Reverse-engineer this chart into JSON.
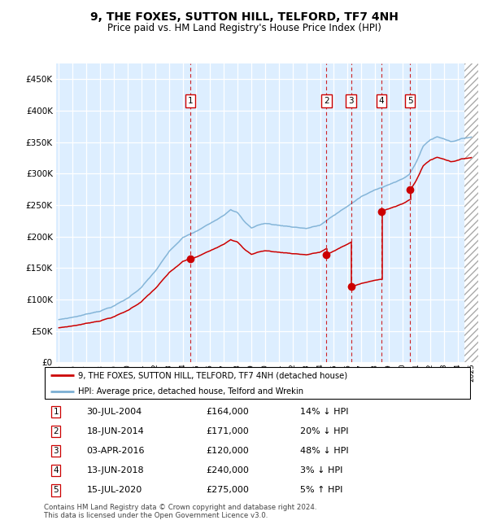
{
  "title": "9, THE FOXES, SUTTON HILL, TELFORD, TF7 4NH",
  "subtitle": "Price paid vs. HM Land Registry's House Price Index (HPI)",
  "legend_line1": "9, THE FOXES, SUTTON HILL, TELFORD, TF7 4NH (detached house)",
  "legend_line2": "HPI: Average price, detached house, Telford and Wrekin",
  "footer1": "Contains HM Land Registry data © Crown copyright and database right 2024.",
  "footer2": "This data is licensed under the Open Government Licence v3.0.",
  "transactions": [
    {
      "num": 1,
      "date": "30-JUL-2004",
      "price": 164000,
      "pct": "14%",
      "dir": "↓",
      "year_x": 2004.57
    },
    {
      "num": 2,
      "date": "18-JUN-2014",
      "price": 171000,
      "pct": "20%",
      "dir": "↓",
      "year_x": 2014.46
    },
    {
      "num": 3,
      "date": "03-APR-2016",
      "price": 120000,
      "pct": "48%",
      "dir": "↓",
      "year_x": 2016.25
    },
    {
      "num": 4,
      "date": "13-JUN-2018",
      "price": 240000,
      "pct": "3%",
      "dir": "↓",
      "year_x": 2018.45
    },
    {
      "num": 5,
      "date": "15-JUL-2020",
      "price": 275000,
      "pct": "5%",
      "dir": "↑",
      "year_x": 2020.54
    }
  ],
  "hpi_color": "#7bafd4",
  "price_color": "#cc0000",
  "bg_color": "#ddeeff",
  "ylim": [
    0,
    475000
  ],
  "xlim_lo": 1994.8,
  "xlim_hi": 2025.5,
  "yticks": [
    0,
    50000,
    100000,
    150000,
    200000,
    250000,
    300000,
    350000,
    400000,
    450000
  ],
  "xticks": [
    1995,
    1996,
    1997,
    1998,
    1999,
    2000,
    2001,
    2002,
    2003,
    2004,
    2005,
    2006,
    2007,
    2008,
    2009,
    2010,
    2011,
    2012,
    2013,
    2014,
    2015,
    2016,
    2017,
    2018,
    2019,
    2020,
    2021,
    2022,
    2023,
    2024,
    2025
  ],
  "hpi_data_x": [
    1995.0,
    1995.08,
    1995.17,
    1995.25,
    1995.33,
    1995.42,
    1995.5,
    1995.58,
    1995.67,
    1995.75,
    1995.83,
    1995.92,
    1996.0,
    1996.08,
    1996.17,
    1996.25,
    1996.33,
    1996.42,
    1996.5,
    1996.58,
    1996.67,
    1996.75,
    1996.83,
    1996.92,
    1997.0,
    1997.08,
    1997.17,
    1997.25,
    1997.33,
    1997.42,
    1997.5,
    1997.58,
    1997.67,
    1997.75,
    1997.83,
    1997.92,
    1998.0,
    1998.08,
    1998.17,
    1998.25,
    1998.33,
    1998.42,
    1998.5,
    1998.58,
    1998.67,
    1998.75,
    1998.83,
    1998.92,
    1999.0,
    1999.08,
    1999.17,
    1999.25,
    1999.33,
    1999.42,
    1999.5,
    1999.58,
    1999.67,
    1999.75,
    1999.83,
    1999.92,
    2000.0,
    2000.08,
    2000.17,
    2000.25,
    2000.33,
    2000.42,
    2000.5,
    2000.58,
    2000.67,
    2000.75,
    2000.83,
    2000.92,
    2001.0,
    2001.08,
    2001.17,
    2001.25,
    2001.33,
    2001.42,
    2001.5,
    2001.58,
    2001.67,
    2001.75,
    2001.83,
    2001.92,
    2002.0,
    2002.08,
    2002.17,
    2002.25,
    2002.33,
    2002.42,
    2002.5,
    2002.58,
    2002.67,
    2002.75,
    2002.83,
    2002.92,
    2003.0,
    2003.08,
    2003.17,
    2003.25,
    2003.33,
    2003.42,
    2003.5,
    2003.58,
    2003.67,
    2003.75,
    2003.83,
    2003.92,
    2004.0,
    2004.08,
    2004.17,
    2004.25,
    2004.33,
    2004.42,
    2004.5,
    2004.58,
    2004.67,
    2004.75,
    2004.83,
    2004.92,
    2005.0,
    2005.08,
    2005.17,
    2005.25,
    2005.33,
    2005.42,
    2005.5,
    2005.58,
    2005.67,
    2005.75,
    2005.83,
    2005.92,
    2006.0,
    2006.08,
    2006.17,
    2006.25,
    2006.33,
    2006.42,
    2006.5,
    2006.58,
    2006.67,
    2006.75,
    2006.83,
    2006.92,
    2007.0,
    2007.08,
    2007.17,
    2007.25,
    2007.33,
    2007.42,
    2007.5,
    2007.58,
    2007.67,
    2007.75,
    2007.83,
    2007.92,
    2008.0,
    2008.08,
    2008.17,
    2008.25,
    2008.33,
    2008.42,
    2008.5,
    2008.58,
    2008.67,
    2008.75,
    2008.83,
    2008.92,
    2009.0,
    2009.08,
    2009.17,
    2009.25,
    2009.33,
    2009.42,
    2009.5,
    2009.58,
    2009.67,
    2009.75,
    2009.83,
    2009.92,
    2010.0,
    2010.08,
    2010.17,
    2010.25,
    2010.33,
    2010.42,
    2010.5,
    2010.58,
    2010.67,
    2010.75,
    2010.83,
    2010.92,
    2011.0,
    2011.08,
    2011.17,
    2011.25,
    2011.33,
    2011.42,
    2011.5,
    2011.58,
    2011.67,
    2011.75,
    2011.83,
    2011.92,
    2012.0,
    2012.08,
    2012.17,
    2012.25,
    2012.33,
    2012.42,
    2012.5,
    2012.58,
    2012.67,
    2012.75,
    2012.83,
    2012.92,
    2013.0,
    2013.08,
    2013.17,
    2013.25,
    2013.33,
    2013.42,
    2013.5,
    2013.58,
    2013.67,
    2013.75,
    2013.83,
    2013.92,
    2014.0,
    2014.08,
    2014.17,
    2014.25,
    2014.33,
    2014.42,
    2014.5,
    2014.58,
    2014.67,
    2014.75,
    2014.83,
    2014.92,
    2015.0,
    2015.08,
    2015.17,
    2015.25,
    2015.33,
    2015.42,
    2015.5,
    2015.58,
    2015.67,
    2015.75,
    2015.83,
    2015.92,
    2016.0,
    2016.08,
    2016.17,
    2016.25,
    2016.33,
    2016.42,
    2016.5,
    2016.58,
    2016.67,
    2016.75,
    2016.83,
    2016.92,
    2017.0,
    2017.08,
    2017.17,
    2017.25,
    2017.33,
    2017.42,
    2017.5,
    2017.58,
    2017.67,
    2017.75,
    2017.83,
    2017.92,
    2018.0,
    2018.08,
    2018.17,
    2018.25,
    2018.33,
    2018.42,
    2018.5,
    2018.58,
    2018.67,
    2018.75,
    2018.83,
    2018.92,
    2019.0,
    2019.08,
    2019.17,
    2019.25,
    2019.33,
    2019.42,
    2019.5,
    2019.58,
    2019.67,
    2019.75,
    2019.83,
    2019.92,
    2020.0,
    2020.08,
    2020.17,
    2020.25,
    2020.33,
    2020.42,
    2020.5,
    2020.58,
    2020.67,
    2020.75,
    2020.83,
    2020.92,
    2021.0,
    2021.08,
    2021.17,
    2021.25,
    2021.33,
    2021.42,
    2021.5,
    2021.58,
    2021.67,
    2021.75,
    2021.83,
    2021.92,
    2022.0,
    2022.08,
    2022.17,
    2022.25,
    2022.33,
    2022.42,
    2022.5,
    2022.58,
    2022.67,
    2022.75,
    2022.83,
    2022.92,
    2023.0,
    2023.08,
    2023.17,
    2023.25,
    2023.33,
    2023.42,
    2023.5,
    2023.58,
    2023.67,
    2023.75,
    2023.83,
    2023.92,
    2024.0,
    2024.08,
    2024.17,
    2024.25,
    2024.33,
    2024.42,
    2024.5,
    2024.58,
    2024.67,
    2024.75,
    2024.83,
    2024.92,
    2025.0
  ]
}
